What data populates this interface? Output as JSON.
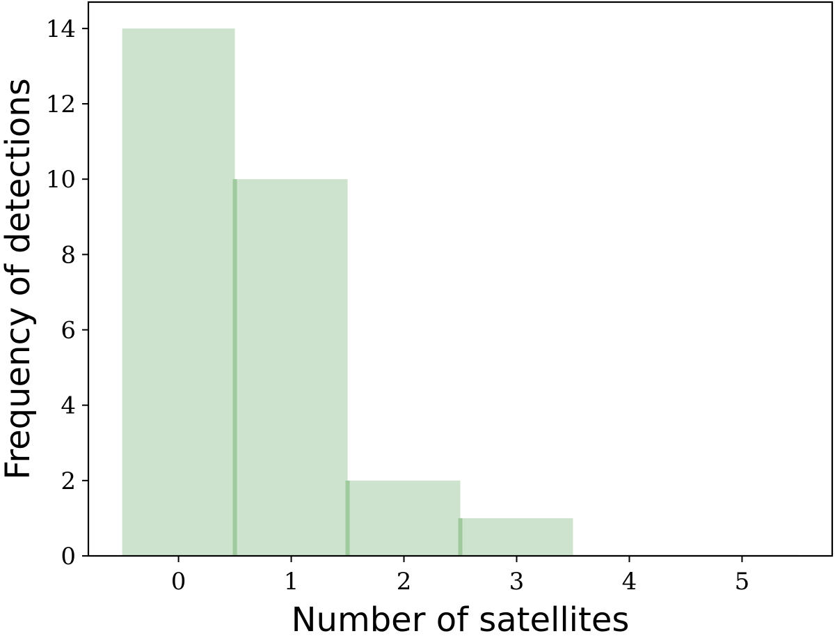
{
  "chart_data": {
    "type": "bar",
    "categories": [
      "0",
      "1",
      "2",
      "3",
      "4",
      "5"
    ],
    "x": [
      0,
      1,
      2,
      3,
      4,
      5
    ],
    "bin_width": 1,
    "series": [
      {
        "values": [
          14,
          10,
          2,
          1,
          0,
          0
        ]
      }
    ],
    "title": "",
    "xlabel": "Number of satellites",
    "ylabel": "Frequency of detections",
    "xlim": [
      -0.8,
      5.8
    ],
    "ylim": [
      0,
      14.7
    ],
    "xticks": [
      0,
      1,
      2,
      3,
      4,
      5
    ],
    "yticks": [
      0,
      2,
      4,
      6,
      8,
      10,
      12,
      14
    ],
    "grid": false,
    "legend": "none",
    "bar_color": "#66aa66"
  }
}
